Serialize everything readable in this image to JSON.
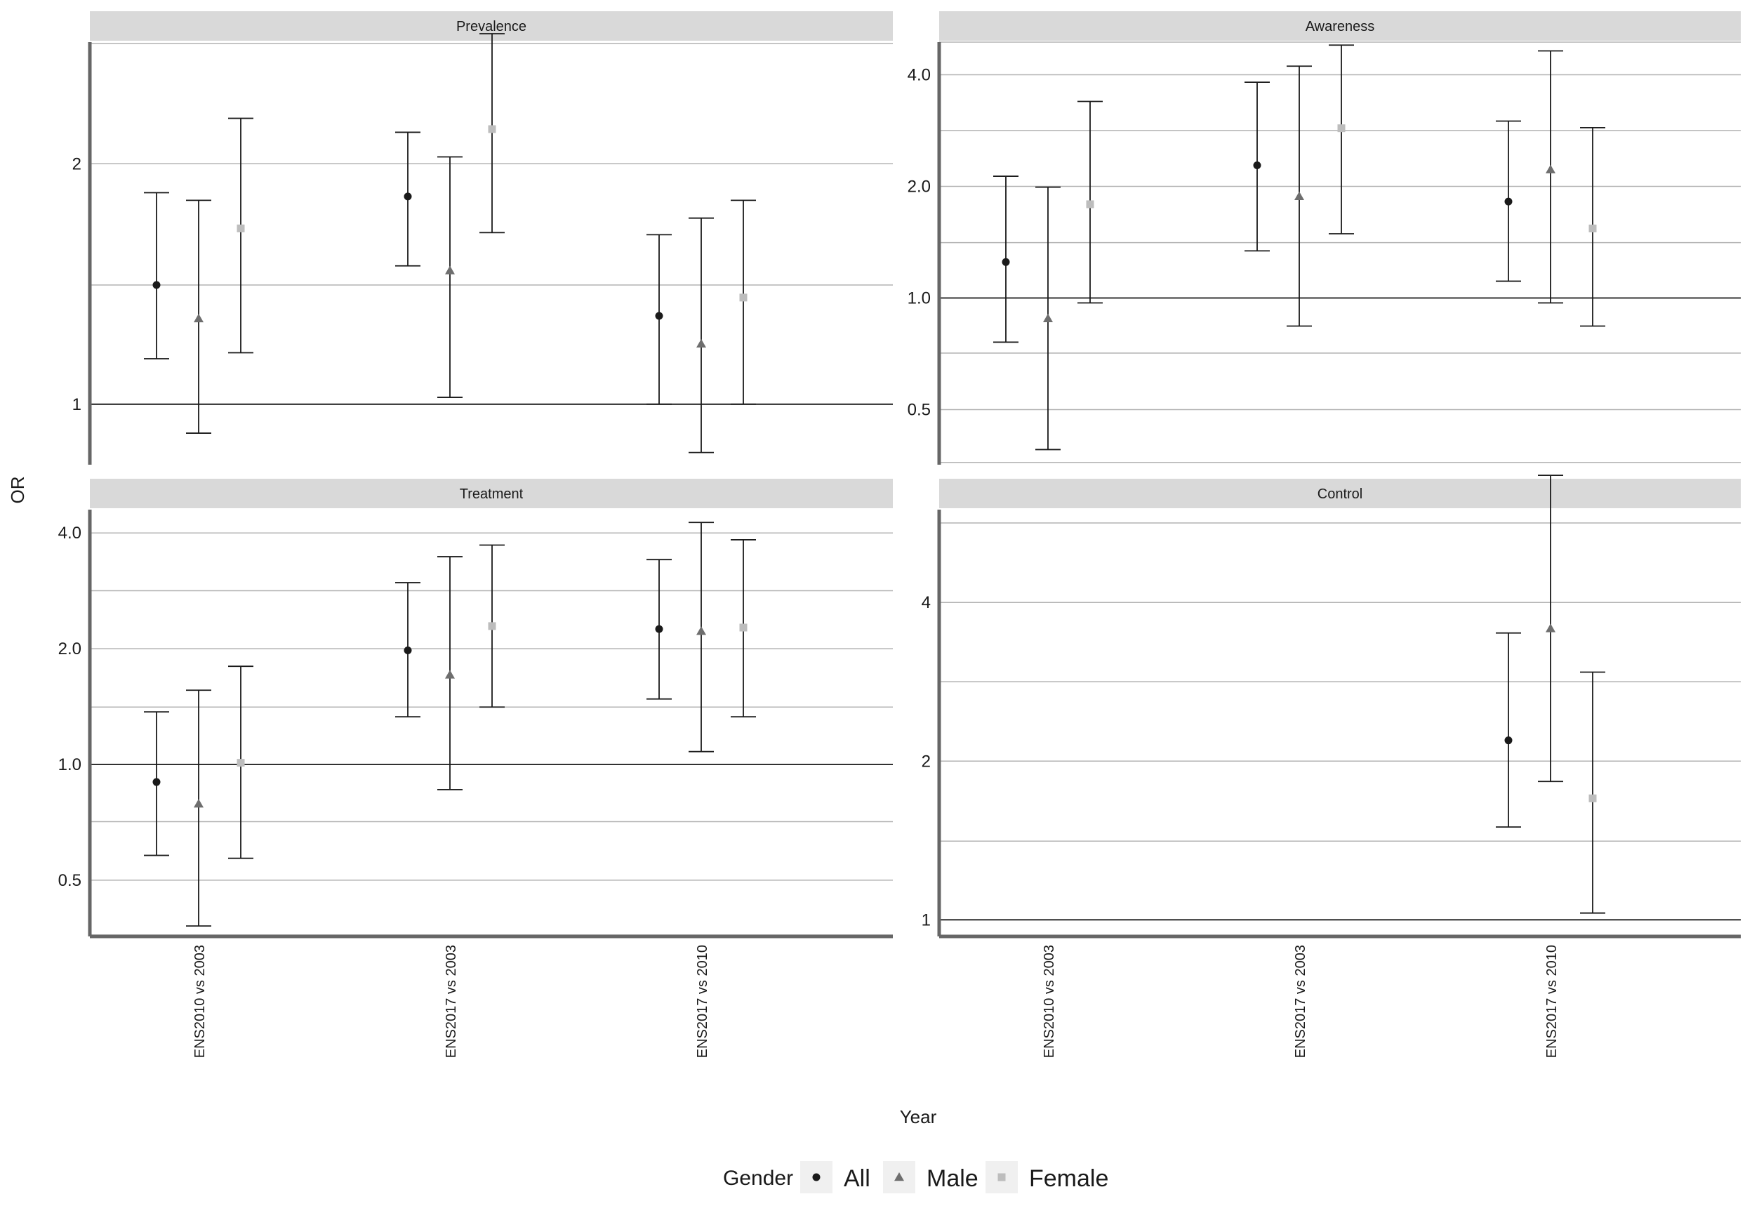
{
  "chart_data": {
    "type": "errorbar",
    "scale_y": "log",
    "xlabel": "Year",
    "ylabel": "OR",
    "categories": [
      "ENS2010 vs 2003",
      "ENS2017 vs 2003",
      "ENS2017 vs 2010"
    ],
    "legend": {
      "title": "Gender",
      "position": "bottom",
      "entries": [
        {
          "label": "All",
          "shape": "circle",
          "color": "#1a1a1a"
        },
        {
          "label": "Male",
          "shape": "triangle",
          "color": "#6e6e6e"
        },
        {
          "label": "Female",
          "shape": "square",
          "color": "#bdbdbd"
        }
      ]
    },
    "colors": {
      "strip": "#d9d9d9",
      "grid": "#b3b3b3",
      "axis": "#666666",
      "ref_line": "#1a1a1a",
      "errorbar": "#1a1a1a"
    },
    "panels": [
      {
        "title": "Prevalence",
        "ylim": [
          0.84,
          2.84
        ],
        "yticks": [
          1,
          2
        ],
        "ytick_labels": [
          "1",
          "2"
        ],
        "ygrid": [
          1.41,
          2.83
        ],
        "ref_line": 1,
        "series": [
          {
            "name": "All",
            "values": [
              {
                "x": "ENS2010 vs 2003",
                "y": 1.41,
                "lo": 1.14,
                "hi": 1.84
              },
              {
                "x": "ENS2017 vs 2003",
                "y": 1.82,
                "lo": 1.49,
                "hi": 2.19
              },
              {
                "x": "ENS2017 vs 2010",
                "y": 1.29,
                "lo": 1.0,
                "hi": 1.63
              }
            ]
          },
          {
            "name": "Male",
            "values": [
              {
                "x": "ENS2010 vs 2003",
                "y": 1.28,
                "lo": 0.92,
                "hi": 1.8
              },
              {
                "x": "ENS2017 vs 2003",
                "y": 1.47,
                "lo": 1.02,
                "hi": 2.04
              },
              {
                "x": "ENS2017 vs 2010",
                "y": 1.19,
                "lo": 0.87,
                "hi": 1.71
              }
            ]
          },
          {
            "name": "Female",
            "values": [
              {
                "x": "ENS2010 vs 2003",
                "y": 1.66,
                "lo": 1.16,
                "hi": 2.28
              },
              {
                "x": "ENS2017 vs 2003",
                "y": 2.21,
                "lo": 1.64,
                "hi": 2.91
              },
              {
                "x": "ENS2017 vs 2010",
                "y": 1.36,
                "lo": 1.0,
                "hi": 1.8
              }
            ]
          }
        ]
      },
      {
        "title": "Awareness",
        "ylim": [
          0.355,
          4.9
        ],
        "yticks": [
          0.5,
          1.0,
          2.0,
          4.0
        ],
        "ytick_labels": [
          "0.5",
          "1.0",
          "2.0",
          "4.0"
        ],
        "ygrid": [
          0.36,
          0.71,
          1.41,
          2.83,
          4.9
        ],
        "ref_line": 1,
        "series": [
          {
            "name": "All",
            "values": [
              {
                "x": "ENS2010 vs 2003",
                "y": 1.25,
                "lo": 0.76,
                "hi": 2.13
              },
              {
                "x": "ENS2017 vs 2003",
                "y": 2.28,
                "lo": 1.34,
                "hi": 3.82
              },
              {
                "x": "ENS2017 vs 2010",
                "y": 1.82,
                "lo": 1.11,
                "hi": 3.0
              }
            ]
          },
          {
            "name": "Male",
            "values": [
              {
                "x": "ENS2010 vs 2003",
                "y": 0.88,
                "lo": 0.39,
                "hi": 1.99
              },
              {
                "x": "ENS2017 vs 2003",
                "y": 1.88,
                "lo": 0.84,
                "hi": 4.22
              },
              {
                "x": "ENS2017 vs 2010",
                "y": 2.22,
                "lo": 0.97,
                "hi": 4.64
              }
            ]
          },
          {
            "name": "Female",
            "values": [
              {
                "x": "ENS2010 vs 2003",
                "y": 1.79,
                "lo": 0.97,
                "hi": 3.39
              },
              {
                "x": "ENS2017 vs 2003",
                "y": 2.87,
                "lo": 1.49,
                "hi": 4.81
              },
              {
                "x": "ENS2017 vs 2010",
                "y": 1.54,
                "lo": 0.84,
                "hi": 2.88
              }
            ]
          }
        ]
      },
      {
        "title": "Treatment",
        "ylim": [
          0.357,
          4.6
        ],
        "yticks": [
          0.5,
          1.0,
          2.0,
          4.0
        ],
        "ytick_labels": [
          "0.5",
          "1.0",
          "2.0",
          "4.0"
        ],
        "ygrid": [
          0.36,
          0.71,
          1.41,
          2.83
        ],
        "ref_line": 1,
        "series": [
          {
            "name": "All",
            "values": [
              {
                "x": "ENS2010 vs 2003",
                "y": 0.9,
                "lo": 0.58,
                "hi": 1.37
              },
              {
                "x": "ENS2017 vs 2003",
                "y": 1.98,
                "lo": 1.33,
                "hi": 2.97
              },
              {
                "x": "ENS2017 vs 2010",
                "y": 2.25,
                "lo": 1.48,
                "hi": 3.41
              }
            ]
          },
          {
            "name": "Male",
            "values": [
              {
                "x": "ENS2010 vs 2003",
                "y": 0.79,
                "lo": 0.38,
                "hi": 1.56
              },
              {
                "x": "ENS2017 vs 2003",
                "y": 1.71,
                "lo": 0.86,
                "hi": 3.47
              },
              {
                "x": "ENS2017 vs 2010",
                "y": 2.22,
                "lo": 1.08,
                "hi": 4.26
              }
            ]
          },
          {
            "name": "Female",
            "values": [
              {
                "x": "ENS2010 vs 2003",
                "y": 1.01,
                "lo": 0.57,
                "hi": 1.8
              },
              {
                "x": "ENS2017 vs 2003",
                "y": 2.29,
                "lo": 1.41,
                "hi": 3.72
              },
              {
                "x": "ENS2017 vs 2010",
                "y": 2.27,
                "lo": 1.33,
                "hi": 3.84
              }
            ]
          }
        ]
      },
      {
        "title": "Control",
        "ylim": [
          0.93,
          6.0
        ],
        "yticks": [
          1,
          2,
          4
        ],
        "ytick_labels": [
          "1",
          "2",
          "4"
        ],
        "ygrid": [
          1.41,
          2.83,
          5.66
        ],
        "ref_line": 1,
        "series": [
          {
            "name": "All",
            "values": [
              {
                "x": "ENS2017 vs 2010",
                "y": 2.19,
                "lo": 1.5,
                "hi": 3.5
              }
            ]
          },
          {
            "name": "Male",
            "values": [
              {
                "x": "ENS2017 vs 2010",
                "y": 3.57,
                "lo": 1.83,
                "hi": 6.97
              }
            ]
          },
          {
            "name": "Female",
            "values": [
              {
                "x": "ENS2017 vs 2010",
                "y": 1.7,
                "lo": 1.03,
                "hi": 2.95
              }
            ]
          }
        ]
      }
    ]
  }
}
